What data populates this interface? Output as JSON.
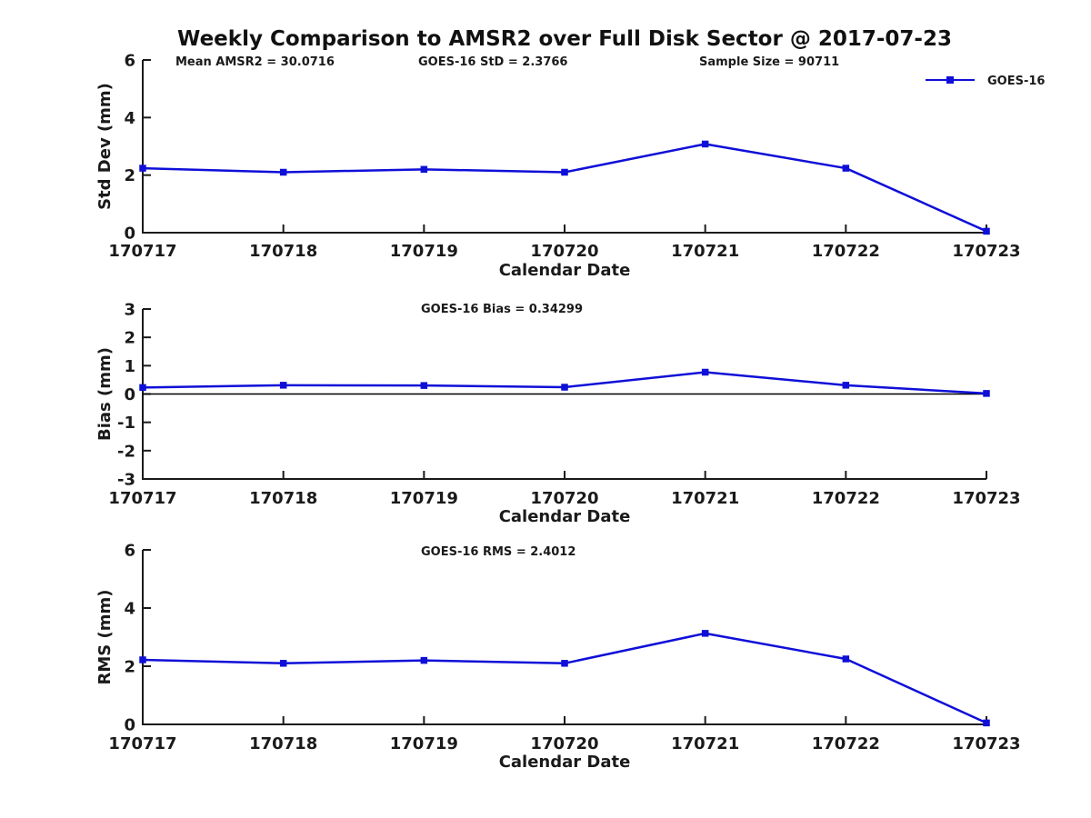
{
  "title": "Weekly Comparison to AMSR2 over Full Disk Sector @ 2017-07-23",
  "legend": {
    "label": "GOES-16"
  },
  "colors": {
    "line": "#0f0fd8",
    "axis": "#1a1a1a",
    "text": "#1a1a1a",
    "zero_line": "#000000",
    "background": "#ffffff"
  },
  "chart_data": [
    {
      "type": "line",
      "name": "std-dev-chart",
      "ylabel": "Std Dev (mm)",
      "xlabel": "Calendar Date",
      "categories": [
        "170717",
        "170718",
        "170719",
        "170720",
        "170721",
        "170722",
        "170723"
      ],
      "series": [
        {
          "name": "GOES-16",
          "values": [
            2.24,
            2.1,
            2.2,
            2.1,
            3.08,
            2.24,
            0.05
          ]
        }
      ],
      "ylim": [
        0,
        6
      ],
      "yticks": [
        0,
        2,
        4,
        6
      ],
      "annotations": [
        "Mean AMSR2 = 30.0716",
        "GOES-16 StD = 2.3766",
        "Sample Size = 90711"
      ],
      "grid": false,
      "zero_line": false,
      "legend_position": "top-right",
      "legend_label": "GOES-16"
    },
    {
      "type": "line",
      "name": "bias-chart",
      "ylabel": "Bias (mm)",
      "xlabel": "Calendar Date",
      "categories": [
        "170717",
        "170718",
        "170719",
        "170720",
        "170721",
        "170722",
        "170723"
      ],
      "series": [
        {
          "name": "GOES-16",
          "values": [
            0.23,
            0.31,
            0.3,
            0.24,
            0.77,
            0.31,
            0.02
          ]
        }
      ],
      "ylim": [
        -3,
        3
      ],
      "yticks": [
        -3,
        -2,
        -1,
        0,
        1,
        2,
        3
      ],
      "annotations": [
        "GOES-16 Bias  = 0.34299"
      ],
      "grid": false,
      "zero_line": true,
      "legend_position": "none"
    },
    {
      "type": "line",
      "name": "rms-chart",
      "ylabel": "RMS (mm)",
      "xlabel": "Calendar Date",
      "categories": [
        "170717",
        "170718",
        "170719",
        "170720",
        "170721",
        "170722",
        "170723"
      ],
      "series": [
        {
          "name": "GOES-16",
          "values": [
            2.22,
            2.1,
            2.2,
            2.1,
            3.13,
            2.25,
            0.05
          ]
        }
      ],
      "ylim": [
        0,
        6
      ],
      "yticks": [
        0,
        2,
        4,
        6
      ],
      "annotations": [
        "GOES-16 RMS = 2.4012"
      ],
      "grid": false,
      "zero_line": false,
      "legend_position": "none"
    }
  ]
}
